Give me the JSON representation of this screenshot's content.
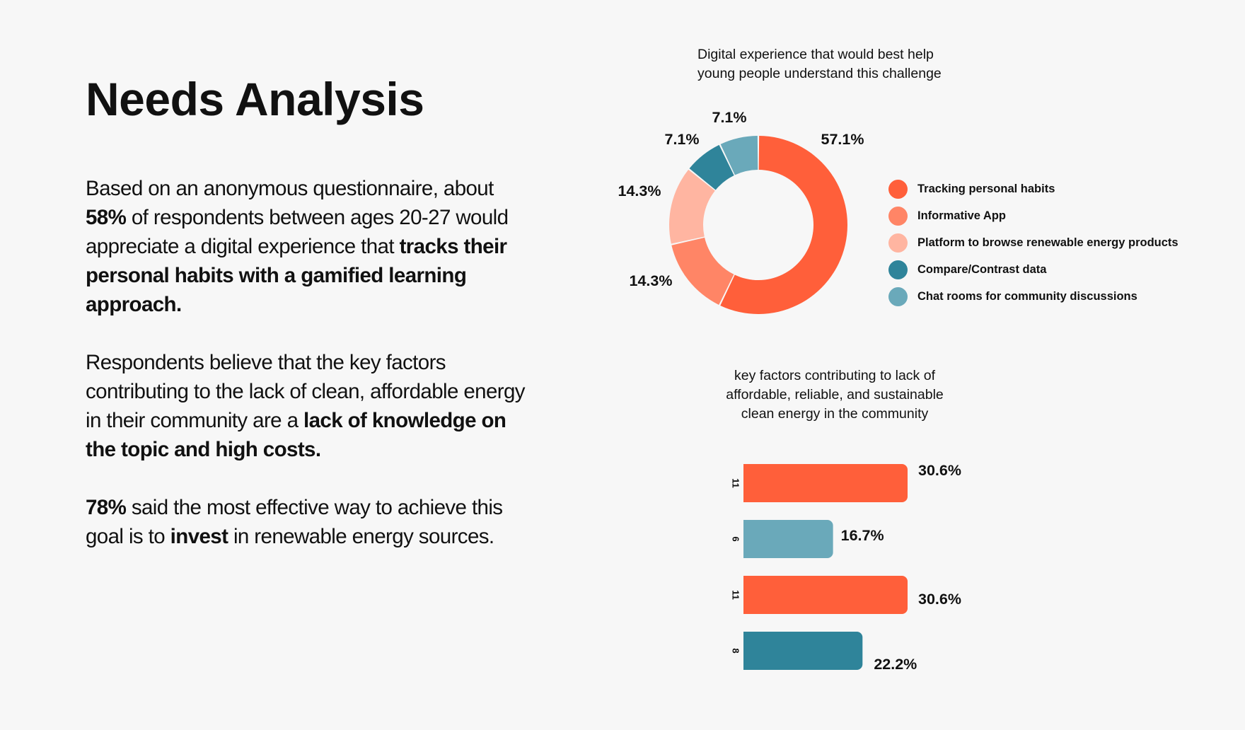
{
  "page": {
    "title": "Needs Analysis",
    "para1": [
      {
        "t": "Based on an anonymous questionnaire, about ",
        "b": false
      },
      {
        "t": "58%",
        "b": true
      },
      {
        "t": " of respondents between ages 20-27 would appreciate a digital experience that ",
        "b": false
      },
      {
        "t": "tracks their personal habits with a gamified learning approach.",
        "b": true
      }
    ],
    "para2": [
      {
        "t": "Respondents believe that the key factors contributing to the lack of clean, affordable energy in their community are a ",
        "b": false
      },
      {
        "t": "lack of knowledge on the topic and high costs.",
        "b": true
      }
    ],
    "para3": [
      {
        "t": "78%",
        "b": true
      },
      {
        "t": " said the most effective way to achieve this goal is to ",
        "b": false
      },
      {
        "t": "invest",
        "b": true
      },
      {
        "t": " in renewable energy sources.",
        "b": false
      }
    ]
  },
  "colors": {
    "background": "#f7f7f7",
    "orange": "#ff5f3a",
    "salmon": "#ff8566",
    "peach": "#ffb5a1",
    "teal": "#2f849a",
    "light_teal": "#6aa9ba"
  },
  "chart_data": [
    {
      "type": "pie",
      "style": "donut",
      "title_lines": [
        "Digital experience that would best help",
        "young people understand this challenge"
      ],
      "slices": [
        {
          "name": "Tracking personal habits",
          "value": 57.1,
          "label": "57.1%",
          "color": "#ff5f3a"
        },
        {
          "name": "Informative App",
          "value": 14.3,
          "label": "14.3%",
          "color": "#ff8566"
        },
        {
          "name": "Platform to browse renewable energy products",
          "value": 14.3,
          "label": "14.3%",
          "color": "#ffb5a1"
        },
        {
          "name": "Compare/Contrast data",
          "value": 7.1,
          "label": "7.1%",
          "color": "#2f849a"
        },
        {
          "name": "Chat rooms for community discussions",
          "value": 7.1,
          "label": "7.1%",
          "color": "#6aa9ba"
        }
      ],
      "legend_position": "right"
    },
    {
      "type": "bar",
      "orientation": "horizontal",
      "title_lines": [
        "key factors contributing to lack of",
        "affordable, reliable, and sustainable",
        "clean energy in the community"
      ],
      "categories": [
        "11",
        "6",
        "11",
        "8"
      ],
      "values": [
        30.6,
        16.7,
        30.6,
        22.2
      ],
      "labels": [
        "30.6%",
        "16.7%",
        "30.6%",
        "22.2%"
      ],
      "colors": [
        "#ff5f3a",
        "#6aa9ba",
        "#ff5f3a",
        "#2f849a"
      ],
      "xlim": [
        0,
        30.6
      ],
      "grid": false
    }
  ]
}
